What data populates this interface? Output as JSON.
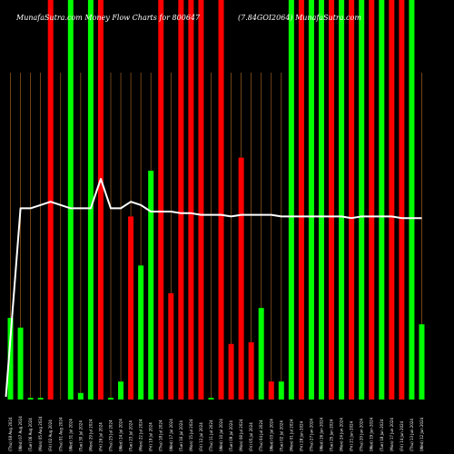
{
  "chart_data": {
    "type": "bar",
    "title_left": "MunafaSutra.com Money Flow Charts for 800647",
    "title_right": "(7.84GOI2064) MunafaSutra.com",
    "grid": true,
    "colors": {
      "up": "#00ff00",
      "down": "#ff0000",
      "line": "#ffffff",
      "grid": "#a0601e",
      "background": "#000000"
    },
    "categories": [
      "(Thu) 08 Aug 2024",
      "(Wed) 07 Aug 2024",
      "(Tue) 06 Aug 2024",
      "(Mon) 05 Aug 2024",
      "(Fri) 02 Aug 2024",
      "(Thu) 01 Aug 2024",
      "(Wed) 31 Jul 2024",
      "(Tue) 30 Jul 2024",
      "(Mon) 29 Jul 2024",
      "(Fri) 26 Jul 2024",
      "(Thu) 25 Jul 2024",
      "(Wed) 24 Jul 2024",
      "(Tue) 23 Jul 2024",
      "(Mon) 22 Jul 2024",
      "(Fri) 19 Jul 2024",
      "(Thu) 18 Jul 2024",
      "(Wed) 17 Jul 2024",
      "(Tue) 16 Jul 2024",
      "(Mon) 15 Jul 2024",
      "(Fri) 12 Jul 2024",
      "(Thu) 11 Jul 2024",
      "(Wed) 10 Jul 2024",
      "(Tue) 09 Jul 2024",
      "(Mon) 08 Jul 2024",
      "(Fri) 05 Jul 2024",
      "(Thu) 04 Jul 2024",
      "(Wed) 03 Jul 2024",
      "(Tue) 02 Jul 2024",
      "(Mon) 01 Jul 2024",
      "(Fri) 28 Jun 2024",
      "(Thu) 27 Jun 2024",
      "(Wed) 26 Jun 2024",
      "(Tue) 25 Jun 2024",
      "(Mon) 24 Jun 2024",
      "(Fri) 21 Jun 2024",
      "(Thu) 20 Jun 2024",
      "(Wed) 19 Jun 2024",
      "(Tue) 18 Jun 2024",
      "(Mon) 17 Jun 2024",
      "(Fri) 14 Jun 2024",
      "(Thu) 13 Jun 2024",
      "(Wed) 12 Jun 2024"
    ],
    "bars": [
      {
        "value": 25,
        "dir": "up"
      },
      {
        "value": 22,
        "dir": "up"
      },
      {
        "value": 0.5,
        "dir": "up"
      },
      {
        "value": 0.5,
        "dir": "up"
      },
      {
        "value": 100,
        "dir": "down"
      },
      {
        "value": 0,
        "dir": "down"
      },
      {
        "value": 100,
        "dir": "up"
      },
      {
        "value": 2,
        "dir": "up"
      },
      {
        "value": 100,
        "dir": "up"
      },
      {
        "value": 100,
        "dir": "down"
      },
      {
        "value": 0.5,
        "dir": "up"
      },
      {
        "value": 5.5,
        "dir": "up"
      },
      {
        "value": 56,
        "dir": "down"
      },
      {
        "value": 41,
        "dir": "up"
      },
      {
        "value": 70,
        "dir": "up"
      },
      {
        "value": 100,
        "dir": "down"
      },
      {
        "value": 32.5,
        "dir": "down"
      },
      {
        "value": 100,
        "dir": "down"
      },
      {
        "value": 100,
        "dir": "down"
      },
      {
        "value": 100,
        "dir": "down"
      },
      {
        "value": 0.5,
        "dir": "up"
      },
      {
        "value": 100,
        "dir": "down"
      },
      {
        "value": 17,
        "dir": "down"
      },
      {
        "value": 74,
        "dir": "down"
      },
      {
        "value": 17.5,
        "dir": "down"
      },
      {
        "value": 28,
        "dir": "up"
      },
      {
        "value": 5.5,
        "dir": "down"
      },
      {
        "value": 5.5,
        "dir": "up"
      },
      {
        "value": 100,
        "dir": "up"
      },
      {
        "value": 100,
        "dir": "down"
      },
      {
        "value": 100,
        "dir": "up"
      },
      {
        "value": 100,
        "dir": "up"
      },
      {
        "value": 100,
        "dir": "down"
      },
      {
        "value": 100,
        "dir": "up"
      },
      {
        "value": 100,
        "dir": "down"
      },
      {
        "value": 100,
        "dir": "up"
      },
      {
        "value": 100,
        "dir": "down"
      },
      {
        "value": 100,
        "dir": "up"
      },
      {
        "value": 100,
        "dir": "down"
      },
      {
        "value": 100,
        "dir": "down"
      },
      {
        "value": 100,
        "dir": "up"
      },
      {
        "value": 23,
        "dir": "up"
      }
    ],
    "price_line": [
      null,
      58.5,
      58.5,
      59.5,
      60.5,
      59.5,
      58.5,
      58.5,
      58.5,
      67.5,
      58.5,
      58.5,
      60.5,
      59.5,
      57.5,
      57.5,
      57.5,
      57,
      57,
      56.5,
      56.5,
      56.5,
      56,
      56.5,
      56.5,
      56.5,
      56.5,
      56,
      56,
      56,
      56,
      56,
      56,
      56,
      55.5,
      56,
      56,
      56,
      56,
      55.5,
      55.5,
      55.5
    ],
    "ylim": [
      0,
      100
    ]
  }
}
